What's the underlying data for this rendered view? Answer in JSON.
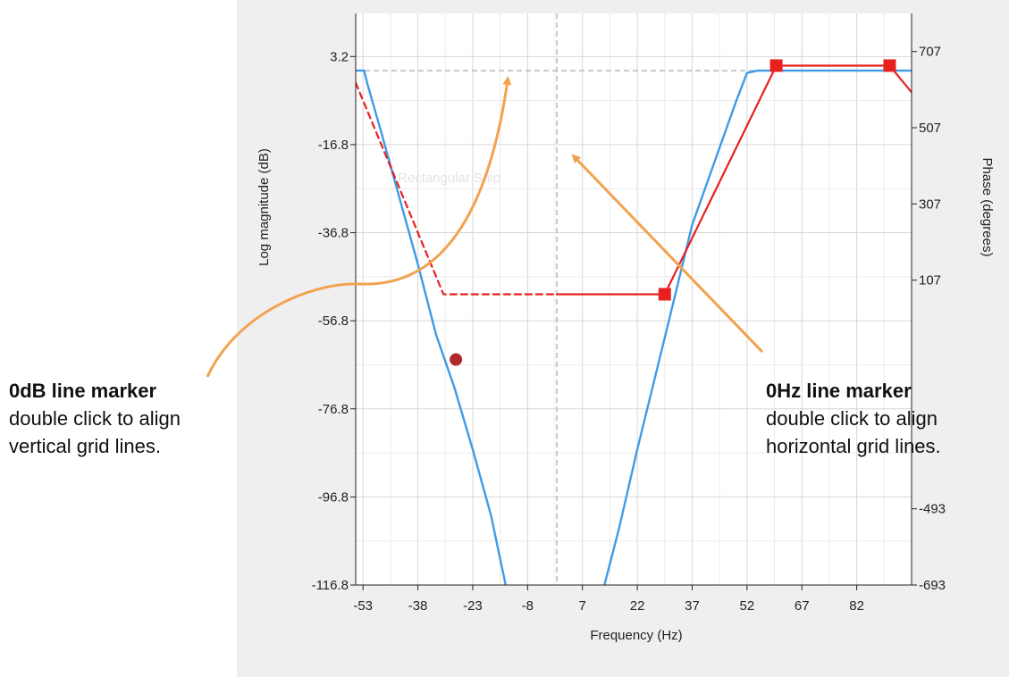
{
  "chart_data": {
    "type": "line",
    "xlabel": "Frequency (Hz)",
    "ylabel_left": "Log magnitude (dB)",
    "ylabel_right": "Phase (degrees)",
    "x_ticks": [
      -53,
      -38,
      -23,
      -8,
      7,
      22,
      37,
      52,
      67,
      82
    ],
    "y_left_ticks": [
      3.2,
      -16.8,
      -36.8,
      -56.8,
      -76.8,
      -96.8,
      -116.8
    ],
    "y_right_ticks": [
      707,
      507,
      307,
      107,
      -493,
      -693
    ],
    "xlim": [
      -55,
      97
    ],
    "ylim_left": [
      -116.8,
      13
    ],
    "ylim_right": [
      -693,
      807
    ],
    "grid": true,
    "reference_lines": {
      "zero_db": 0,
      "zero_hz": 0
    },
    "series": [
      {
        "color": "#3f9be8",
        "points": [
          [
            -55,
            0
          ],
          [
            -52.7,
            0
          ],
          [
            -51.8,
            -3
          ],
          [
            -48,
            -14
          ],
          [
            -44,
            -26
          ],
          [
            -38,
            -44
          ],
          [
            -33,
            -60
          ],
          [
            -28,
            -72
          ],
          [
            -23,
            -86
          ],
          [
            -18,
            -101
          ],
          [
            -14,
            -116.8
          ]
        ]
      },
      {
        "color": "#3f9be8",
        "points": [
          [
            13,
            -116.8
          ],
          [
            17,
            -104
          ],
          [
            22,
            -86
          ],
          [
            30,
            -59
          ],
          [
            37,
            -35
          ],
          [
            43,
            -21
          ],
          [
            49,
            -7
          ],
          [
            52,
            -0.5
          ],
          [
            55,
            0
          ],
          [
            97,
            0
          ]
        ]
      },
      {
        "color": "#e82020",
        "dashed": true,
        "points": [
          [
            -55,
            625
          ],
          [
            -31,
            70
          ],
          [
            0,
            70
          ]
        ]
      },
      {
        "color": "#e82020",
        "points": [
          [
            0,
            70
          ],
          [
            29.5,
            70
          ],
          [
            60,
            670
          ],
          [
            91,
            670
          ],
          [
            97,
            600
          ]
        ]
      }
    ],
    "markers": [
      {
        "shape": "square",
        "color": "#e82020",
        "x": 29.5,
        "y2": 70
      },
      {
        "shape": "square",
        "color": "#e82020",
        "x": 60,
        "y2": 670
      },
      {
        "shape": "square",
        "color": "#e82020",
        "x": 91,
        "y2": 670
      },
      {
        "shape": "circle",
        "color": "#b02a2a",
        "x": -27.6,
        "y": -65.6
      }
    ]
  },
  "annotations": {
    "zero_db": {
      "title": "0dB line marker",
      "line1": "double click to align",
      "line2": "vertical grid lines.",
      "arrow_color": "#f2a24e"
    },
    "zero_hz": {
      "title": "0Hz line marker",
      "line1": "double click to align",
      "line2": "horizontal grid lines.",
      "arrow_color": "#f2a24e"
    }
  },
  "faint_overlay_text": "Rectangular Snip"
}
